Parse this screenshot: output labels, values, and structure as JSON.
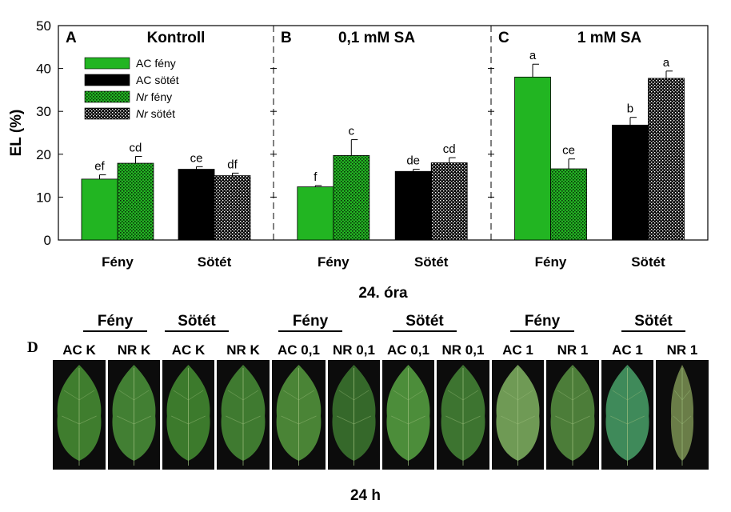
{
  "chart_data": {
    "type": "bar",
    "ylabel": "EL (%)",
    "xlabel": "24. óra",
    "ylim": [
      0,
      50
    ],
    "yticks": [
      0,
      10,
      20,
      30,
      40,
      50
    ],
    "panels": [
      {
        "letter": "A",
        "title": "Kontroll",
        "groups": [
          {
            "label": "Fény",
            "bars": [
              {
                "series": "AC fény",
                "value": 14.2,
                "error": 1.0,
                "letter": "ef"
              },
              {
                "series": "Nr fény",
                "value": 17.9,
                "error": 1.6,
                "letter": "cd"
              }
            ]
          },
          {
            "label": "Sötét",
            "bars": [
              {
                "series": "AC sötét",
                "value": 16.5,
                "error": 0.6,
                "letter": "ce"
              },
              {
                "series": "Nr sötét",
                "value": 15.0,
                "error": 0.6,
                "letter": "df"
              }
            ]
          }
        ]
      },
      {
        "letter": "B",
        "title": "0,1 mM SA",
        "groups": [
          {
            "label": "Fény",
            "bars": [
              {
                "series": "AC fény",
                "value": 12.4,
                "error": 0.3,
                "letter": "f"
              },
              {
                "series": "Nr fény",
                "value": 19.7,
                "error": 3.7,
                "letter": "c"
              }
            ]
          },
          {
            "label": "Sötét",
            "bars": [
              {
                "series": "AC sötét",
                "value": 16.0,
                "error": 0.5,
                "letter": "de"
              },
              {
                "series": "Nr sötét",
                "value": 18.0,
                "error": 1.2,
                "letter": "cd"
              }
            ]
          }
        ]
      },
      {
        "letter": "C",
        "title": "1 mM SA",
        "groups": [
          {
            "label": "Fény",
            "bars": [
              {
                "series": "AC fény",
                "value": 38.0,
                "error": 3.0,
                "letter": "a"
              },
              {
                "series": "Nr fény",
                "value": 16.6,
                "error": 2.3,
                "letter": "ce"
              }
            ]
          },
          {
            "label": "Sötét",
            "bars": [
              {
                "series": "AC sötét",
                "value": 26.8,
                "error": 1.8,
                "letter": "b"
              },
              {
                "series": "Nr sötét",
                "value": 37.7,
                "error": 1.7,
                "letter": "a"
              }
            ]
          }
        ]
      }
    ],
    "legend": {
      "placement": "top-left",
      "entries": [
        {
          "prefix": "AC",
          "suffix": " fény",
          "italic_prefix": false,
          "style": "solid-green"
        },
        {
          "prefix": "AC",
          "suffix": " sötét",
          "italic_prefix": false,
          "style": "solid-black"
        },
        {
          "prefix": "Nr",
          "suffix": " fény",
          "italic_prefix": true,
          "style": "dotted-green"
        },
        {
          "prefix": "Nr",
          "suffix": " sötét",
          "italic_prefix": true,
          "style": "dotted-black"
        }
      ]
    },
    "colors": {
      "green": "#22b522",
      "black": "#000000"
    }
  },
  "photos": {
    "panel_letter": "D",
    "caption": "24 h",
    "groups": [
      "Fény",
      "Sötét",
      "Fény",
      "Sötét",
      "Fény",
      "Sötét"
    ],
    "leaves": [
      {
        "label": "AC K",
        "color": "#3f7d2e"
      },
      {
        "label": "NR K",
        "color": "#427f33"
      },
      {
        "label": "AC K",
        "color": "#3c7a2c"
      },
      {
        "label": "NR K",
        "color": "#3f7a30"
      },
      {
        "label": "AC 0,1",
        "color": "#4a8436"
      },
      {
        "label": "NR 0,1",
        "color": "#35682a"
      },
      {
        "label": "AC 0,1",
        "color": "#4c8d3a"
      },
      {
        "label": "NR 0,1",
        "color": "#3d7430"
      },
      {
        "label": "AC 1",
        "color": "#6f9a55"
      },
      {
        "label": "NR 1",
        "color": "#4c7d39"
      },
      {
        "label": "AC 1",
        "color": "#3f8a5a"
      },
      {
        "label": "NR 1",
        "color": "#6a7d48"
      }
    ]
  }
}
